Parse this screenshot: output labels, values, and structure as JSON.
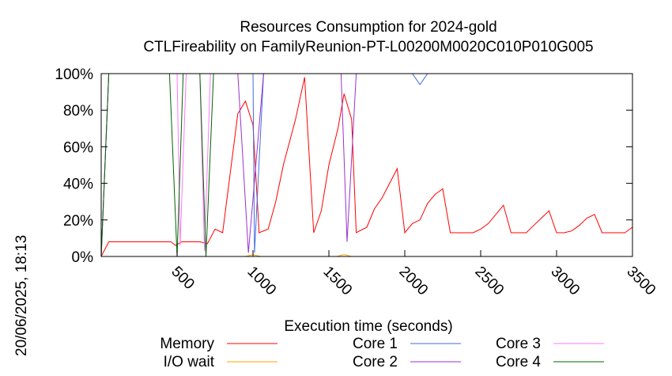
{
  "timestamp": "20/06/2025, 18:13",
  "chart_data": {
    "type": "line",
    "title": "Resources Consumption for 2024-gold",
    "subtitle": "CTLFireability on FamilyReunion-PT-L00200M0020C010P010G005",
    "xlabel": "Execution time (seconds)",
    "ylabel": "",
    "xlim": [
      0,
      3500
    ],
    "ylim": [
      0,
      100
    ],
    "x_ticks": [
      500,
      1000,
      1500,
      2000,
      2500,
      3000,
      3500
    ],
    "y_ticks": [
      0,
      20,
      40,
      60,
      80,
      100
    ],
    "y_tick_labels": [
      "0%",
      "20%",
      "40%",
      "60%",
      "80%",
      "100%"
    ],
    "grid": false,
    "legend_position": "bottom",
    "series": [
      {
        "name": "Memory",
        "color": "#ff0000",
        "points": [
          [
            0,
            0
          ],
          [
            50,
            8
          ],
          [
            100,
            8
          ],
          [
            200,
            8
          ],
          [
            300,
            8
          ],
          [
            400,
            8
          ],
          [
            460,
            8
          ],
          [
            490,
            6
          ],
          [
            530,
            8
          ],
          [
            600,
            8
          ],
          [
            650,
            8
          ],
          [
            700,
            7
          ],
          [
            750,
            15
          ],
          [
            800,
            13
          ],
          [
            900,
            78
          ],
          [
            950,
            85
          ],
          [
            1000,
            72
          ],
          [
            1040,
            13
          ],
          [
            1100,
            15
          ],
          [
            1150,
            30
          ],
          [
            1200,
            50
          ],
          [
            1280,
            75
          ],
          [
            1340,
            98
          ],
          [
            1400,
            13
          ],
          [
            1450,
            25
          ],
          [
            1500,
            50
          ],
          [
            1560,
            70
          ],
          [
            1600,
            89
          ],
          [
            1650,
            75
          ],
          [
            1680,
            13
          ],
          [
            1750,
            16
          ],
          [
            1800,
            26
          ],
          [
            1850,
            32
          ],
          [
            1900,
            40
          ],
          [
            1950,
            48
          ],
          [
            2000,
            13
          ],
          [
            2050,
            18
          ],
          [
            2100,
            20
          ],
          [
            2150,
            29
          ],
          [
            2200,
            34
          ],
          [
            2250,
            37
          ],
          [
            2300,
            13
          ],
          [
            2350,
            13
          ],
          [
            2450,
            13
          ],
          [
            2500,
            15
          ],
          [
            2550,
            18
          ],
          [
            2600,
            23
          ],
          [
            2650,
            28
          ],
          [
            2700,
            13
          ],
          [
            2800,
            13
          ],
          [
            2850,
            17
          ],
          [
            2900,
            21
          ],
          [
            2950,
            25
          ],
          [
            3000,
            13
          ],
          [
            3050,
            13
          ],
          [
            3100,
            14
          ],
          [
            3150,
            17
          ],
          [
            3200,
            21
          ],
          [
            3250,
            23
          ],
          [
            3300,
            13
          ],
          [
            3350,
            13
          ],
          [
            3450,
            13
          ],
          [
            3500,
            16
          ]
        ]
      },
      {
        "name": "I/O wait",
        "color": "#ffa500",
        "points": [
          [
            0,
            0
          ],
          [
            950,
            0
          ],
          [
            1000,
            1
          ],
          [
            1050,
            0
          ],
          [
            1550,
            0
          ],
          [
            1600,
            1
          ],
          [
            1650,
            0
          ],
          [
            3500,
            0
          ]
        ]
      },
      {
        "name": "Core 1",
        "color": "#4169e1",
        "points": [
          [
            0,
            0
          ],
          [
            50,
            100
          ],
          [
            1000,
            100
          ],
          [
            1010,
            2
          ],
          [
            1070,
            100
          ],
          [
            2050,
            100
          ],
          [
            2100,
            94
          ],
          [
            2150,
            100
          ],
          [
            3500,
            100
          ]
        ]
      },
      {
        "name": "Core 2",
        "color": "#9932cc",
        "points": [
          [
            0,
            0
          ],
          [
            50,
            100
          ],
          [
            900,
            100
          ],
          [
            970,
            2
          ],
          [
            1070,
            100
          ],
          [
            1580,
            100
          ],
          [
            1620,
            8
          ],
          [
            1680,
            100
          ],
          [
            3500,
            100
          ]
        ]
      },
      {
        "name": "Core 3",
        "color": "#ff77ff",
        "points": [
          [
            0,
            0
          ],
          [
            50,
            100
          ],
          [
            500,
            100
          ],
          [
            520,
            6
          ],
          [
            560,
            100
          ],
          [
            650,
            100
          ],
          [
            680,
            3
          ],
          [
            720,
            100
          ],
          [
            3500,
            100
          ]
        ]
      },
      {
        "name": "Core 4",
        "color": "#006400",
        "points": [
          [
            0,
            0
          ],
          [
            50,
            100
          ],
          [
            450,
            100
          ],
          [
            500,
            0
          ],
          [
            540,
            100
          ],
          [
            650,
            100
          ],
          [
            690,
            0
          ],
          [
            740,
            100
          ],
          [
            3500,
            100
          ]
        ]
      }
    ]
  }
}
